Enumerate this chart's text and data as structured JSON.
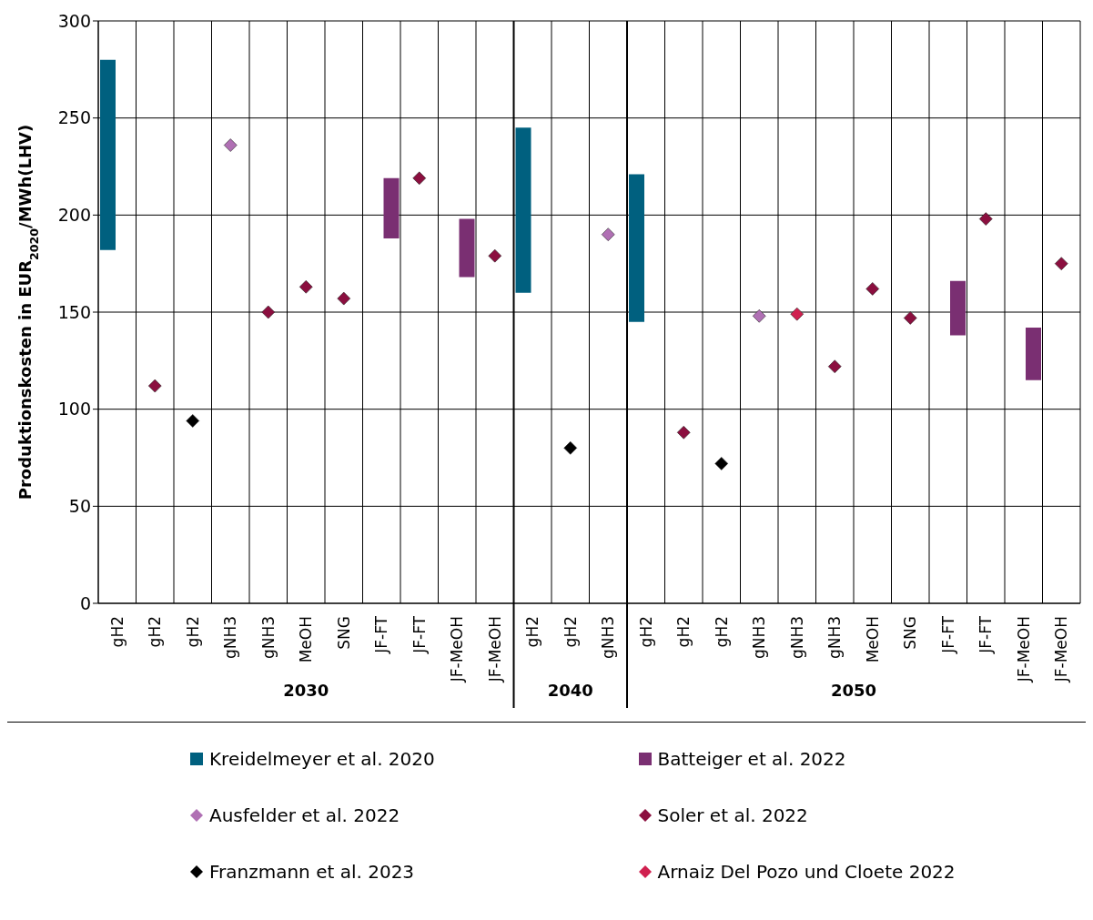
{
  "chart_data": {
    "type": "bar",
    "ylabel": "Produktionskosten in EUR$_{2020}$/MWh(LHV)",
    "categories": [
      "gH2",
      "gH2",
      "gH2",
      "gNH3",
      "gNH3",
      "MeOH",
      "SNG",
      "JF-FT",
      "JF-FT",
      "JF-MeOH",
      "JF-MeOH",
      "gH2",
      "gH2",
      "gNH3",
      "gH2",
      "gH2",
      "gH2",
      "gNH3",
      "gNH3",
      "gNH3",
      "MeOH",
      "SNG",
      "JF-FT",
      "JF-FT",
      "JF-MeOH",
      "JF-MeOH"
    ],
    "series": [
      {
        "name": "Kreidelmeyer et al. 2020",
        "color": "#00607f",
        "base": [
          182,
          null,
          null,
          null,
          null,
          null,
          null,
          null,
          null,
          null,
          null,
          160,
          null,
          null,
          145,
          null,
          null,
          null,
          null,
          null,
          null,
          null,
          null,
          null,
          null,
          null
        ],
        "values": [
          98,
          null,
          null,
          null,
          null,
          null,
          null,
          null,
          null,
          null,
          null,
          85,
          null,
          null,
          76,
          null,
          null,
          null,
          null,
          null,
          null,
          null,
          null,
          null,
          null,
          null
        ]
      },
      {
        "name": "Batteiger et al. 2022",
        "color": "#7a2f72",
        "base": [
          null,
          null,
          null,
          null,
          null,
          null,
          null,
          188,
          null,
          168,
          null,
          null,
          null,
          null,
          null,
          null,
          null,
          null,
          null,
          null,
          null,
          null,
          138,
          null,
          115,
          null
        ],
        "values": [
          null,
          null,
          null,
          null,
          null,
          null,
          null,
          31,
          null,
          30,
          null,
          null,
          null,
          null,
          null,
          null,
          null,
          null,
          null,
          null,
          null,
          null,
          28,
          null,
          27,
          null
        ]
      },
      {
        "name": "Ausfelder et al. 2022",
        "type": "scatter",
        "marker": "diamond",
        "color": "#b070b4",
        "values": [
          null,
          null,
          null,
          236,
          null,
          null,
          null,
          null,
          null,
          null,
          null,
          null,
          null,
          190,
          null,
          null,
          null,
          148,
          null,
          null,
          null,
          null,
          null,
          null,
          null,
          null
        ]
      },
      {
        "name": "Soler et al. 2022",
        "type": "scatter",
        "marker": "diamond",
        "color": "#8b0f3f",
        "values": [
          null,
          112,
          null,
          null,
          150,
          163,
          157,
          null,
          219,
          null,
          179,
          null,
          null,
          null,
          null,
          88,
          null,
          null,
          null,
          122,
          162,
          147,
          null,
          198,
          null,
          175
        ]
      },
      {
        "name": "Franzmann et al. 2023",
        "type": "scatter",
        "marker": "diamond",
        "color": "#000000",
        "values": [
          null,
          null,
          94,
          null,
          null,
          null,
          null,
          null,
          null,
          null,
          null,
          null,
          80,
          null,
          null,
          null,
          72,
          null,
          null,
          null,
          null,
          null,
          null,
          null,
          null,
          null
        ]
      },
      {
        "name": "Arnaiz Del Pozo und Cloete 2022",
        "type": "scatter",
        "marker": "diamond",
        "color": "#d0204f",
        "values": [
          null,
          null,
          null,
          null,
          null,
          null,
          null,
          null,
          null,
          null,
          null,
          null,
          null,
          null,
          null,
          null,
          null,
          null,
          149,
          null,
          null,
          null,
          null,
          null,
          null,
          null
        ]
      }
    ],
    "annotations": [
      "2030",
      "2040",
      "2050"
    ],
    "ylim": [
      0,
      300
    ],
    "yticks": [
      0,
      50,
      100,
      150,
      200,
      250,
      300
    ],
    "grid": true,
    "legend": "bottom"
  }
}
